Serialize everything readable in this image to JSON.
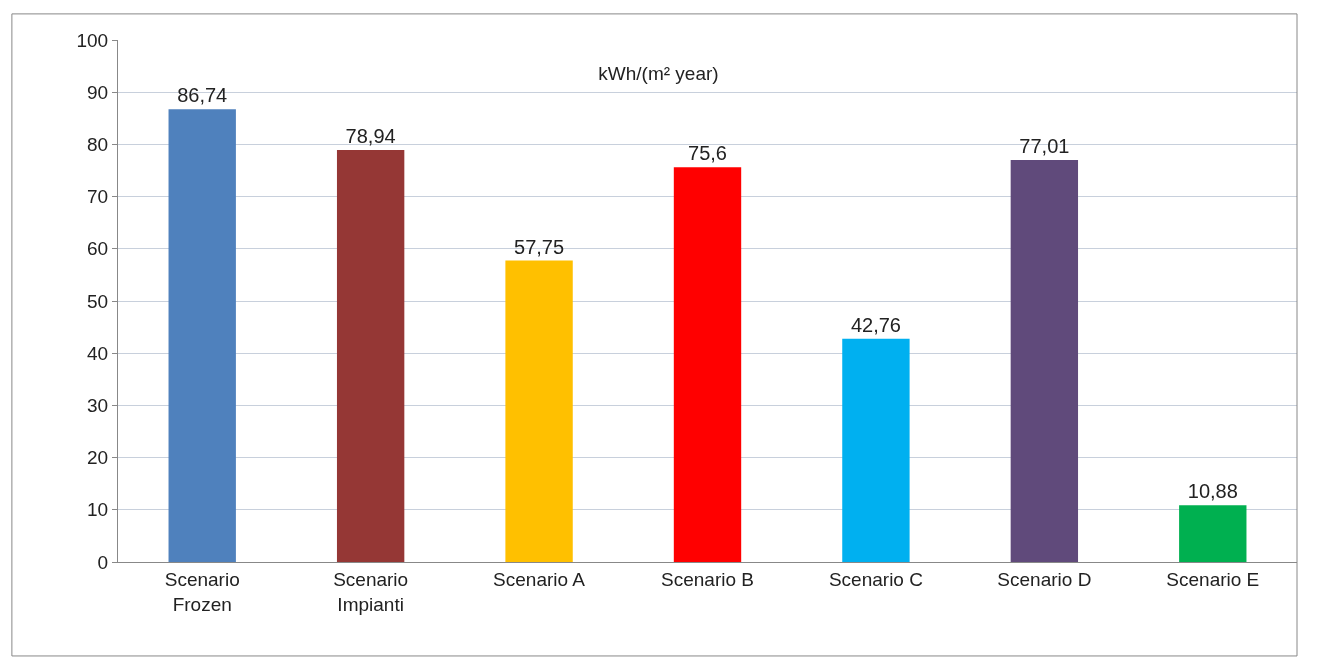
{
  "chart_data": {
    "type": "bar",
    "title": "kWh/(m² year)",
    "categories": [
      "Scenario Frozen",
      "Scenario Impianti",
      "Scenario A",
      "Scenario B",
      "Scenario C",
      "Scenario D",
      "Scenario E"
    ],
    "values": [
      86.74,
      78.94,
      57.75,
      75.6,
      42.76,
      77.01,
      10.88
    ],
    "value_labels": [
      "86,74",
      "78,94",
      "57,75",
      "75,6",
      "42,76",
      "77,01",
      "10,88"
    ],
    "colors": [
      "#4f81bd",
      "#953735",
      "#ffc000",
      "#ff0000",
      "#00b0f0",
      "#604a7b",
      "#00b050"
    ],
    "ylim": [
      0,
      100
    ],
    "yticks": [
      0,
      10,
      20,
      30,
      40,
      50,
      60,
      70,
      80,
      90,
      100
    ],
    "grid": "y"
  }
}
